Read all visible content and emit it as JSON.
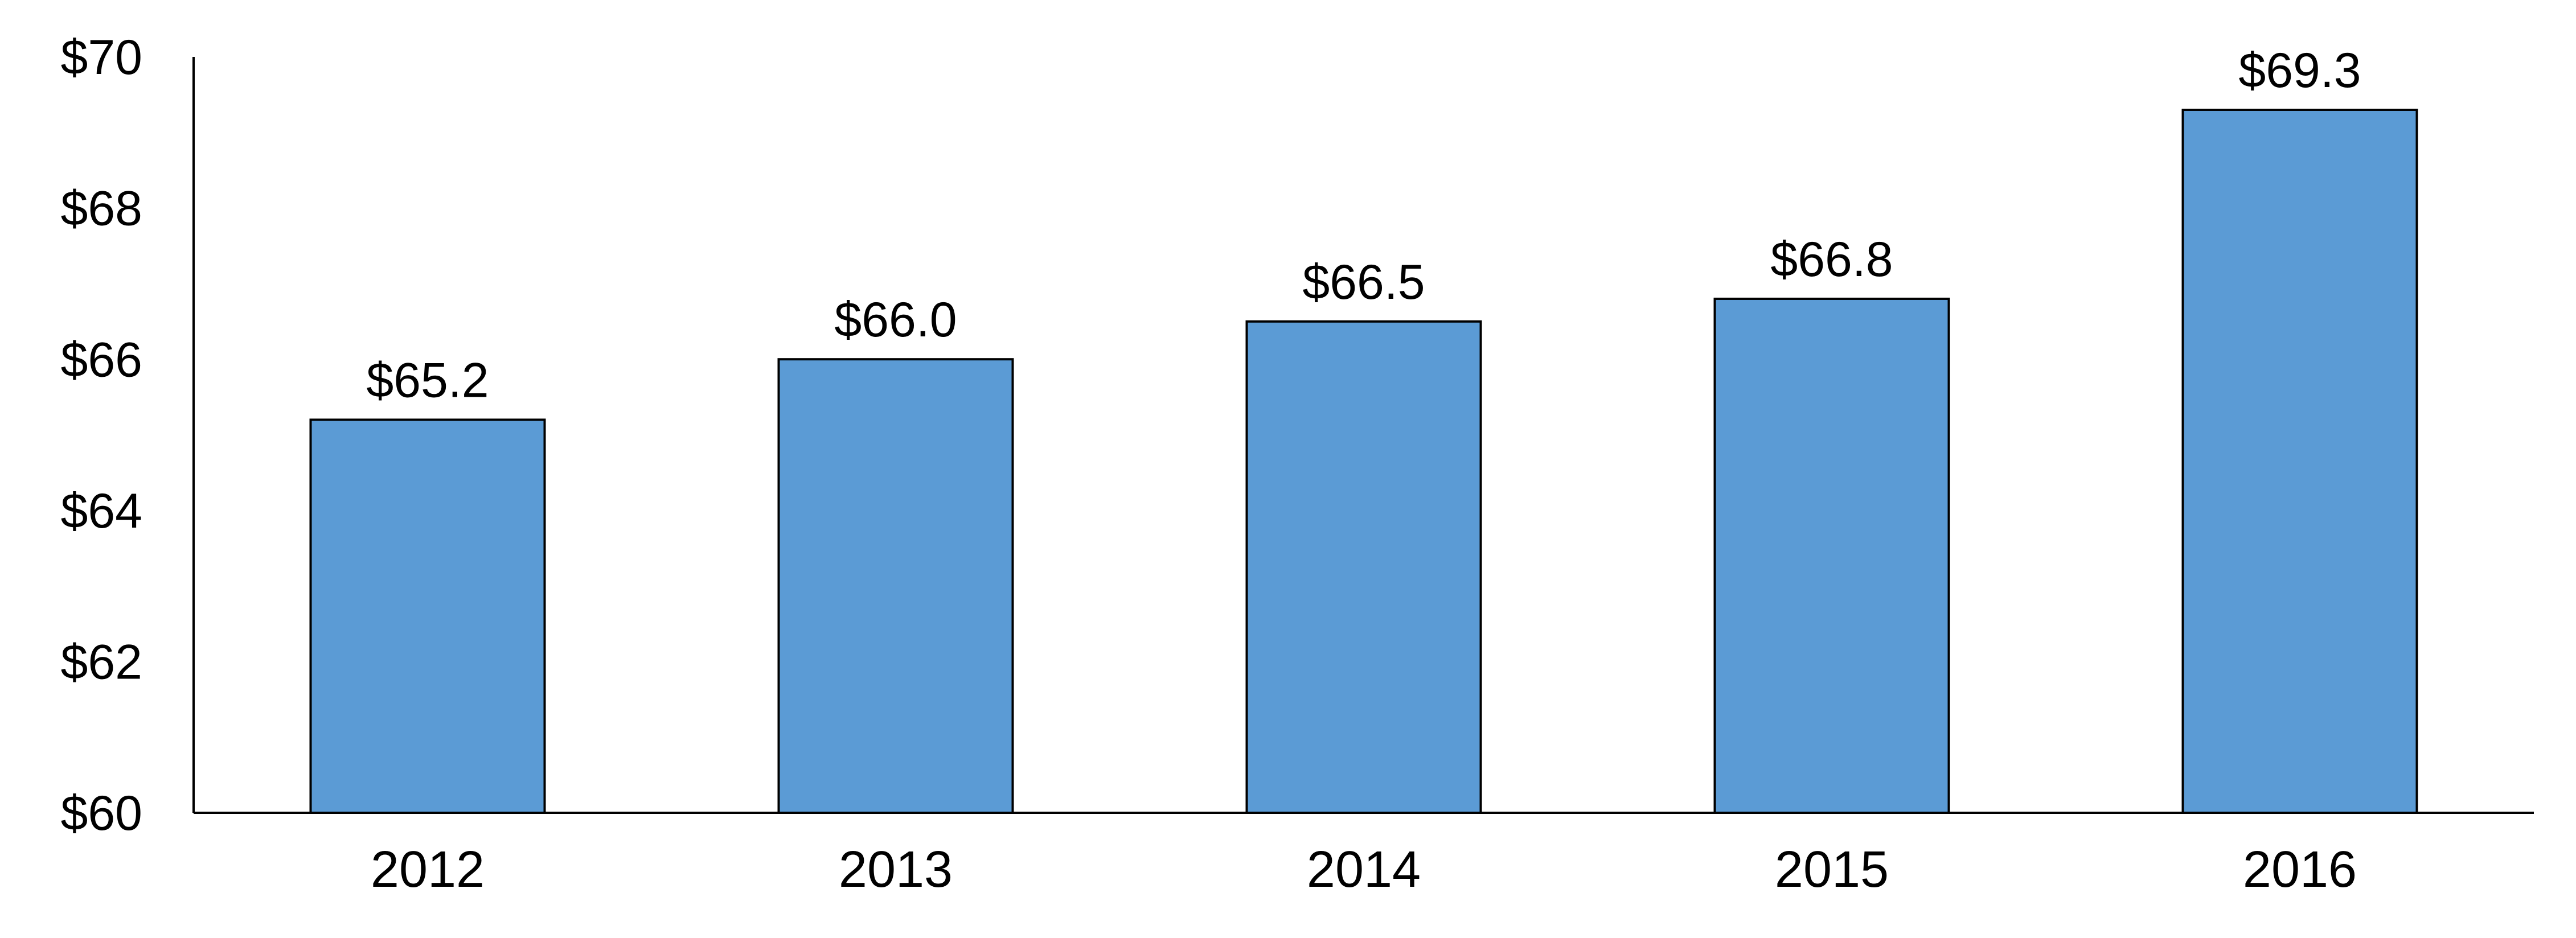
{
  "chart_data": {
    "type": "bar",
    "title": "",
    "xlabel": "",
    "ylabel": "",
    "categories": [
      "2012",
      "2013",
      "2014",
      "2015",
      "2016"
    ],
    "values": [
      65.2,
      66.0,
      66.5,
      66.8,
      69.3
    ],
    "data_labels": [
      "$65.2",
      "$66.0",
      "$66.5",
      "$66.8",
      "$69.3"
    ],
    "ylim": [
      60,
      70
    ],
    "y_ticks": [
      60,
      62,
      64,
      66,
      68,
      70
    ],
    "y_tick_labels": [
      "$60",
      "$62",
      "$64",
      "$66",
      "$68",
      "$70"
    ],
    "grid": false,
    "legend": "none",
    "bar_color": "#5B9BD5",
    "bar_edge_color": "#000000"
  }
}
